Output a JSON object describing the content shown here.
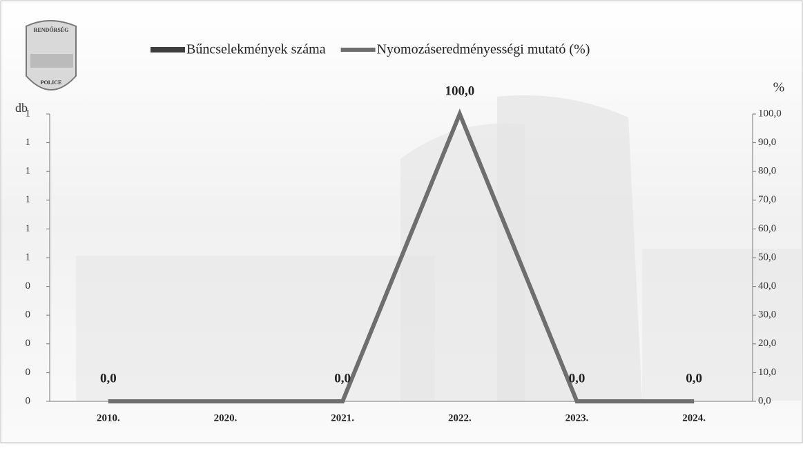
{
  "logo": {
    "top": "RENDŐRSÉG",
    "bottom": "POLICE"
  },
  "chart_data": {
    "type": "bar-line",
    "categories": [
      "2010.",
      "2020.",
      "2021.",
      "2022.",
      "2023.",
      "2024."
    ],
    "series": [
      {
        "name": "Bűncselekmények száma",
        "type": "bar",
        "color": "#3f3f3f",
        "values": [
          0,
          0,
          0,
          0,
          0,
          0
        ]
      },
      {
        "name": "Nyomozáseredményességi mutató (%)",
        "type": "line",
        "axis": "y2",
        "color": "#6e6e6e",
        "values": [
          0,
          0,
          0,
          100,
          0,
          0
        ],
        "value_labels": [
          "0,0",
          null,
          "0,0",
          "100,0",
          "0,0",
          "0,0"
        ]
      }
    ],
    "ylabel": "db",
    "y2label": "%",
    "ylim": [
      0,
      1
    ],
    "yticks": [
      {
        "value": 0,
        "label": "0"
      },
      {
        "value": 0.1,
        "label": "0"
      },
      {
        "value": 0.2,
        "label": "0"
      },
      {
        "value": 0.3,
        "label": "0"
      },
      {
        "value": 0.4,
        "label": "0"
      },
      {
        "value": 0.5,
        "label": "1"
      },
      {
        "value": 0.6,
        "label": "1"
      },
      {
        "value": 0.7,
        "label": "1"
      },
      {
        "value": 0.8,
        "label": "1"
      },
      {
        "value": 0.9,
        "label": "1"
      },
      {
        "value": 1,
        "label": "1"
      }
    ],
    "y2lim": [
      0,
      100
    ],
    "y2ticks": [
      {
        "value": 0,
        "label": "0,0"
      },
      {
        "value": 10,
        "label": "10,0"
      },
      {
        "value": 20,
        "label": "20,0"
      },
      {
        "value": 30,
        "label": "30,0"
      },
      {
        "value": 40,
        "label": "40,0"
      },
      {
        "value": 50,
        "label": "50,0"
      },
      {
        "value": 60,
        "label": "60,0"
      },
      {
        "value": 70,
        "label": "70,0"
      },
      {
        "value": 80,
        "label": "80,0"
      },
      {
        "value": 90,
        "label": "90,0"
      },
      {
        "value": 100,
        "label": "100,0"
      }
    ],
    "legend": "top"
  }
}
